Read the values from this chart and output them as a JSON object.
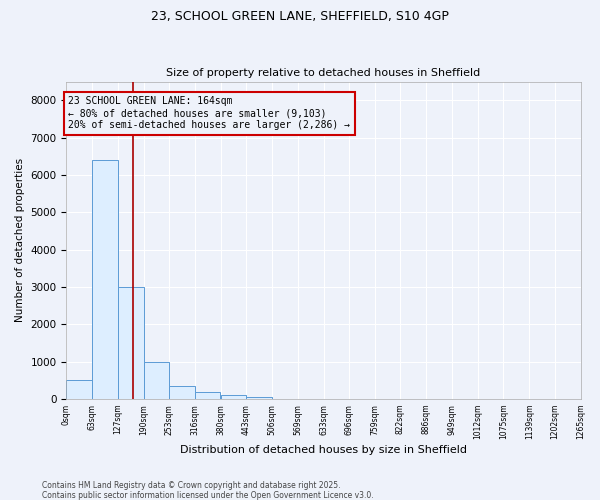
{
  "title": "23, SCHOOL GREEN LANE, SHEFFIELD, S10 4GP",
  "subtitle": "Size of property relative to detached houses in Sheffield",
  "xlabel": "Distribution of detached houses by size in Sheffield",
  "ylabel": "Number of detached properties",
  "bin_edges": [
    0,
    63,
    127,
    190,
    253,
    316,
    380,
    443,
    506,
    569,
    633,
    696,
    759,
    822,
    886,
    949,
    1012,
    1075,
    1139,
    1202,
    1265
  ],
  "bar_heights": [
    500,
    6400,
    3000,
    1000,
    350,
    175,
    100,
    50,
    0,
    0,
    0,
    0,
    0,
    0,
    0,
    0,
    0,
    0,
    0,
    0
  ],
  "bar_color": "#ddeeff",
  "bar_edge_color": "#5b9bd5",
  "vline_x": 164,
  "vline_color": "#aa0000",
  "ylim": [
    0,
    8500
  ],
  "annotation_line1": "23 SCHOOL GREEN LANE: 164sqm",
  "annotation_line2": "← 80% of detached houses are smaller (9,103)",
  "annotation_line3": "20% of semi-detached houses are larger (2,286) →",
  "annotation_box_edge_color": "#cc0000",
  "footnote1": "Contains HM Land Registry data © Crown copyright and database right 2025.",
  "footnote2": "Contains public sector information licensed under the Open Government Licence v3.0.",
  "background_color": "#eef2fa",
  "plot_bg_color": "#eef2fa",
  "grid_color": "#ffffff",
  "tick_labels": [
    "0sqm",
    "63sqm",
    "127sqm",
    "190sqm",
    "253sqm",
    "316sqm",
    "380sqm",
    "443sqm",
    "506sqm",
    "569sqm",
    "633sqm",
    "696sqm",
    "759sqm",
    "822sqm",
    "886sqm",
    "949sqm",
    "1012sqm",
    "1075sqm",
    "1139sqm",
    "1202sqm",
    "1265sqm"
  ],
  "yticks": [
    0,
    1000,
    2000,
    3000,
    4000,
    5000,
    6000,
    7000,
    8000
  ]
}
